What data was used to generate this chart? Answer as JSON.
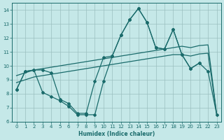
{
  "xlabel": "Humidex (Indice chaleur)",
  "xlim": [
    -0.5,
    23.5
  ],
  "ylim": [
    6,
    14.5
  ],
  "xticks": [
    0,
    1,
    2,
    3,
    4,
    5,
    6,
    7,
    8,
    9,
    10,
    11,
    12,
    13,
    14,
    15,
    16,
    17,
    18,
    19,
    20,
    21,
    22,
    23
  ],
  "yticks": [
    6,
    7,
    8,
    9,
    10,
    11,
    12,
    13,
    14
  ],
  "background_color": "#c5e8e8",
  "grid_color": "#9bbfbf",
  "line_color": "#1a6b6b",
  "line_zigzag_x": [
    0,
    1,
    2,
    3,
    4,
    5,
    6,
    7,
    8,
    9,
    10,
    11,
    12,
    13,
    14,
    15,
    16,
    17,
    18,
    19,
    20,
    21
  ],
  "line_zigzag_y": [
    8.3,
    9.6,
    9.7,
    9.7,
    9.5,
    7.6,
    7.3,
    6.6,
    6.6,
    8.9,
    10.6,
    10.7,
    12.2,
    13.3,
    14.1,
    13.1,
    11.3,
    11.2,
    12.6,
    10.8,
    9.8,
    10.2
  ],
  "line_bottom_x": [
    0,
    1,
    2,
    3,
    4,
    5,
    6,
    7,
    8,
    9,
    10,
    11,
    12,
    13,
    14,
    15,
    16,
    17,
    18,
    19,
    20,
    21,
    22,
    23
  ],
  "line_bottom_y": [
    8.3,
    9.6,
    9.7,
    8.1,
    7.8,
    7.5,
    7.1,
    6.5,
    6.5,
    6.5,
    8.9,
    10.7,
    12.2,
    13.3,
    14.1,
    13.1,
    11.3,
    11.2,
    12.6,
    10.8,
    9.8,
    10.2,
    9.6,
    6.5
  ],
  "line_upper_trend_x": [
    0,
    1,
    2,
    3,
    4,
    5,
    6,
    7,
    8,
    9,
    10,
    11,
    12,
    13,
    14,
    15,
    16,
    17,
    18,
    19,
    20,
    21,
    22,
    23
  ],
  "line_upper_trend_y": [
    9.3,
    9.5,
    9.7,
    9.8,
    9.9,
    10.0,
    10.1,
    10.2,
    10.3,
    10.4,
    10.5,
    10.6,
    10.7,
    10.8,
    10.9,
    11.0,
    11.1,
    11.2,
    11.3,
    11.4,
    11.3,
    11.45,
    11.5,
    6.5
  ],
  "line_lower_trend_x": [
    0,
    1,
    2,
    3,
    4,
    5,
    6,
    7,
    8,
    9,
    10,
    11,
    12,
    13,
    14,
    15,
    16,
    17,
    18,
    19,
    20,
    21,
    22,
    23
  ],
  "line_lower_trend_y": [
    8.8,
    9.0,
    9.2,
    9.3,
    9.4,
    9.5,
    9.6,
    9.7,
    9.8,
    9.9,
    10.0,
    10.1,
    10.2,
    10.3,
    10.4,
    10.5,
    10.6,
    10.7,
    10.8,
    10.8,
    10.7,
    10.85,
    10.9,
    6.5
  ]
}
